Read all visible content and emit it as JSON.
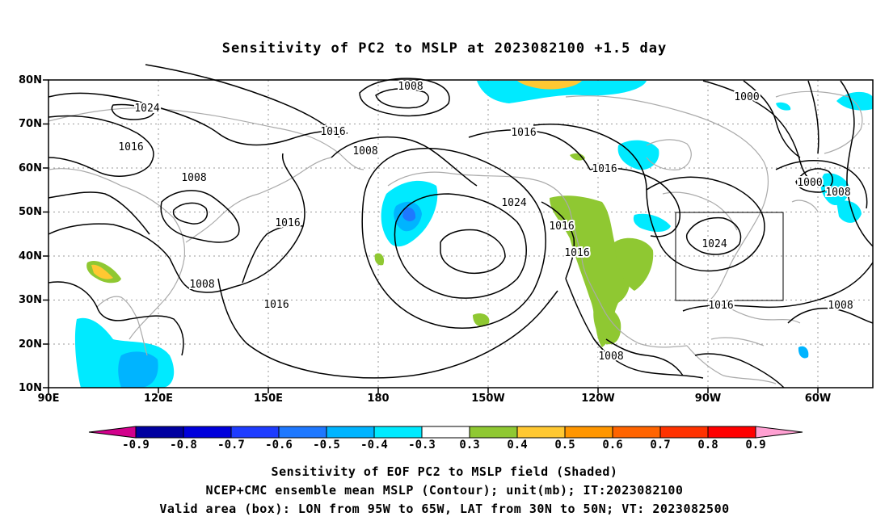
{
  "title": "Sensitivity of PC2 to MSLP at 2023082100 +1.5 day",
  "lat_labels": [
    "80N",
    "70N",
    "60N",
    "50N",
    "40N",
    "30N",
    "20N",
    "10N"
  ],
  "lon_labels": [
    "90E",
    "120E",
    "150E",
    "180",
    "150W",
    "120W",
    "90W",
    "60W"
  ],
  "contour_labels": [
    "1024",
    "1016",
    "1008",
    "1008",
    "1016",
    "1008",
    "1016",
    "1008",
    "1016",
    "1024",
    "1016",
    "1016",
    "1016",
    "1000",
    "1000",
    "1008",
    "1024",
    "1016",
    "1016",
    "1008",
    "1008"
  ],
  "colorbar": {
    "labels": [
      "-0.9",
      "-0.8",
      "-0.7",
      "-0.6",
      "-0.5",
      "-0.4",
      "-0.3",
      "0.3",
      "0.4",
      "0.5",
      "0.6",
      "0.7",
      "0.8",
      "0.9"
    ],
    "colors": [
      "#d2008c",
      "#0000a0",
      "#0000dc",
      "#1e3cff",
      "#1e78ff",
      "#00b4ff",
      "#00eaff",
      "#ffffff",
      "#8fc832",
      "#ffc832",
      "#ff9600",
      "#ff6400",
      "#ff3200",
      "#ff0000",
      "#ffa0d2"
    ]
  },
  "valid_box": {
    "lon_min": -95,
    "lon_max": -65,
    "lat_min": 30,
    "lat_max": 50
  },
  "footer": [
    "Sensitivity of EOF PC2 to MSLP field (Shaded)",
    "NCEP+CMC ensemble mean MSLP (Contour); unit(mb); IT:2023082100",
    "Valid area (box): LON from 95W to 65W, LAT from 30N to 50N; VT: 2023082500"
  ]
}
